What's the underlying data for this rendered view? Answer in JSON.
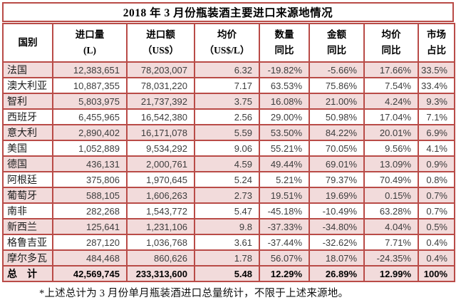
{
  "title": "2018 年 3 月份瓶装酒主要进口来源地情况",
  "footnote": "*上述总计为 3 月份单月瓶装酒进口总量统计，不限于上述来源地。",
  "colors": {
    "border_red": "#b94b47",
    "row_pink": "#f2dbdb",
    "data_text": "#3d3d3d",
    "header_text": "#000000"
  },
  "chart_data": {
    "type": "table",
    "title": "2018 年 3 月份瓶装酒主要进口来源地情况",
    "columns": [
      {
        "line1": "国别",
        "line2": ""
      },
      {
        "line1": "进口量",
        "line2": "(L)"
      },
      {
        "line1": "进口额",
        "line2": "（US$）"
      },
      {
        "line1": "均价",
        "line2": "（US$/L）"
      },
      {
        "line1": "数量",
        "line2": "同比"
      },
      {
        "line1": "金额",
        "line2": "同比"
      },
      {
        "line1": "均价",
        "line2": "同比"
      },
      {
        "line1": "市场",
        "line2": "占比"
      }
    ],
    "rows": [
      {
        "country": "法国",
        "volume": "12,383,651",
        "value": "78,203,007",
        "avg_price": "6.32",
        "qty_yoy": "-19.82%",
        "value_yoy": "-5.66%",
        "price_yoy": "17.66%",
        "share": "33.5%"
      },
      {
        "country": "澳大利亚",
        "volume": "10,887,355",
        "value": "78,031,220",
        "avg_price": "7.17",
        "qty_yoy": "63.53%",
        "value_yoy": "75.86%",
        "price_yoy": "7.54%",
        "share": "33.4%"
      },
      {
        "country": "智利",
        "volume": "5,803,975",
        "value": "21,737,392",
        "avg_price": "3.75",
        "qty_yoy": "16.08%",
        "value_yoy": "21.00%",
        "price_yoy": "4.24%",
        "share": "9.3%"
      },
      {
        "country": "西班牙",
        "volume": "6,455,965",
        "value": "16,542,380",
        "avg_price": "2.56",
        "qty_yoy": "29.00%",
        "value_yoy": "50.98%",
        "price_yoy": "17.04%",
        "share": "7.1%"
      },
      {
        "country": "意大利",
        "volume": "2,890,402",
        "value": "16,171,078",
        "avg_price": "5.59",
        "qty_yoy": "53.50%",
        "value_yoy": "84.22%",
        "price_yoy": "20.01%",
        "share": "6.9%"
      },
      {
        "country": "美国",
        "volume": "1,052,889",
        "value": "9,534,292",
        "avg_price": "9.06",
        "qty_yoy": "55.21%",
        "value_yoy": "70.05%",
        "price_yoy": "9.56%",
        "share": "4.1%"
      },
      {
        "country": "德国",
        "volume": "436,131",
        "value": "2,000,761",
        "avg_price": "4.59",
        "qty_yoy": "49.44%",
        "value_yoy": "69.01%",
        "price_yoy": "13.09%",
        "share": "0.9%"
      },
      {
        "country": "阿根廷",
        "volume": "375,806",
        "value": "1,970,645",
        "avg_price": "5.24",
        "qty_yoy": "5.21%",
        "value_yoy": "79.37%",
        "price_yoy": "70.49%",
        "share": "0.8%"
      },
      {
        "country": "葡萄牙",
        "volume": "588,105",
        "value": "1,606,263",
        "avg_price": "2.73",
        "qty_yoy": "19.51%",
        "value_yoy": "19.69%",
        "price_yoy": "0.15%",
        "share": "0.7%"
      },
      {
        "country": "南非",
        "volume": "282,268",
        "value": "1,543,772",
        "avg_price": "5.47",
        "qty_yoy": "-45.18%",
        "value_yoy": "-10.49%",
        "price_yoy": "63.28%",
        "share": "0.7%"
      },
      {
        "country": "新西兰",
        "volume": "125,641",
        "value": "1,231,106",
        "avg_price": "9.8",
        "qty_yoy": "-37.33%",
        "value_yoy": "-34.80%",
        "price_yoy": "4.04%",
        "share": "0.5%"
      },
      {
        "country": "格鲁吉亚",
        "volume": "287,120",
        "value": "1,036,768",
        "avg_price": "3.61",
        "qty_yoy": "-37.44%",
        "value_yoy": "-32.62%",
        "price_yoy": "7.71%",
        "share": "0.4%"
      },
      {
        "country": "摩尔多瓦",
        "volume": "484,468",
        "value": "860,626",
        "avg_price": "1.78",
        "qty_yoy": "56.07%",
        "value_yoy": "18.07%",
        "price_yoy": "-24.35%",
        "share": "0.4%"
      },
      {
        "country": "总　计",
        "volume": "42,569,745",
        "value": "233,313,600",
        "avg_price": "5.48",
        "qty_yoy": "12.29%",
        "value_yoy": "26.89%",
        "price_yoy": "12.99%",
        "share": "100%",
        "is_total": true
      }
    ]
  }
}
